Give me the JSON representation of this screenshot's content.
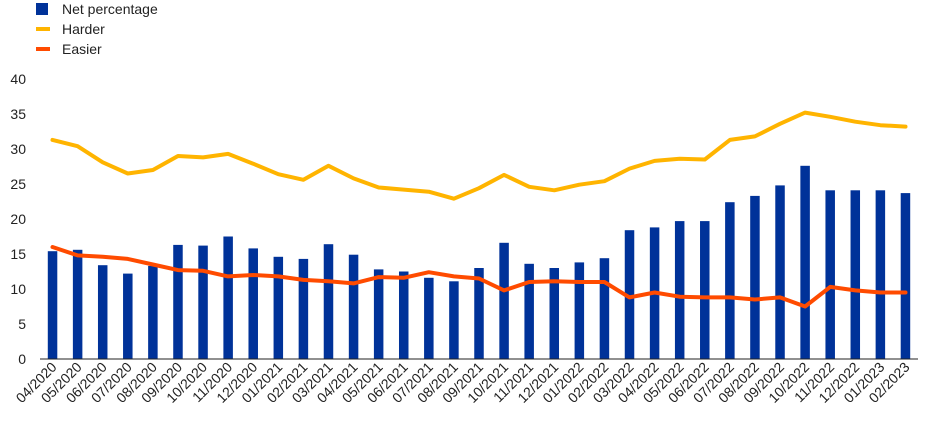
{
  "chart_data": {
    "type": "bar",
    "title": "",
    "xlabel": "",
    "ylabel": "",
    "ylim": [
      0,
      40
    ],
    "yticks": [
      0,
      5,
      10,
      15,
      20,
      25,
      30,
      35,
      40
    ],
    "grid": false,
    "legend_position": "top-left",
    "categories": [
      "04/2020",
      "05/2020",
      "06/2020",
      "07/2020",
      "08/2020",
      "09/2020",
      "10/2020",
      "11/2020",
      "12/2020",
      "01/2021",
      "02/2021",
      "03/2021",
      "04/2021",
      "05/2021",
      "06/2021",
      "07/2021",
      "08/2021",
      "09/2021",
      "10/2021",
      "11/2021",
      "12/2021",
      "01/2022",
      "02/2022",
      "03/2022",
      "04/2022",
      "05/2022",
      "06/2022",
      "07/2022",
      "08/2022",
      "09/2022",
      "10/2022",
      "11/2022",
      "12/2022",
      "01/2023",
      "02/2023"
    ],
    "series": [
      {
        "name": "Net percentage",
        "kind": "bar",
        "color": "#003299",
        "values": [
          15.4,
          15.6,
          13.4,
          12.2,
          13.3,
          16.3,
          16.2,
          17.5,
          15.8,
          14.6,
          14.3,
          16.4,
          14.9,
          12.8,
          12.5,
          11.6,
          11.1,
          13.0,
          16.6,
          13.6,
          13.0,
          13.8,
          14.4,
          18.4,
          18.8,
          19.7,
          19.7,
          22.4,
          23.3,
          24.8,
          27.6,
          24.1,
          24.1,
          24.1,
          23.7
        ]
      },
      {
        "name": "Harder",
        "kind": "line",
        "color": "#FFB400",
        "values": [
          31.3,
          30.4,
          28.1,
          26.5,
          27.0,
          29.0,
          28.8,
          29.3,
          27.9,
          26.4,
          25.6,
          27.6,
          25.8,
          24.5,
          24.2,
          23.9,
          22.9,
          24.4,
          26.3,
          24.6,
          24.1,
          24.9,
          25.4,
          27.2,
          28.3,
          28.6,
          28.5,
          31.3,
          31.8,
          33.6,
          35.2,
          34.6,
          33.9,
          33.4,
          33.2
        ]
      },
      {
        "name": "Easier",
        "kind": "line",
        "color": "#FF4B00",
        "values": [
          16.0,
          14.8,
          14.6,
          14.3,
          13.5,
          12.7,
          12.6,
          11.8,
          12.0,
          11.8,
          11.3,
          11.1,
          10.8,
          11.7,
          11.6,
          12.4,
          11.8,
          11.5,
          9.8,
          11.0,
          11.1,
          11.0,
          11.0,
          8.8,
          9.5,
          8.9,
          8.8,
          8.8,
          8.5,
          8.8,
          7.5,
          10.3,
          9.8,
          9.5,
          9.5
        ]
      }
    ]
  }
}
